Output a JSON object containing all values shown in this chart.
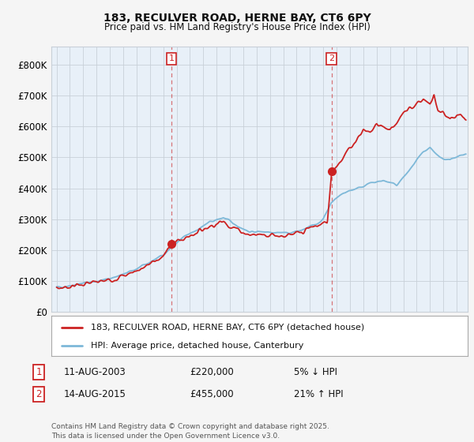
{
  "title_line1": "183, RECULVER ROAD, HERNE BAY, CT6 6PY",
  "title_line2": "Price paid vs. HM Land Registry's House Price Index (HPI)",
  "ytick_labels": [
    "£0",
    "£100K",
    "£200K",
    "£300K",
    "£400K",
    "£500K",
    "£600K",
    "£700K",
    "£800K"
  ],
  "yticks": [
    0,
    100000,
    200000,
    300000,
    400000,
    500000,
    600000,
    700000,
    800000
  ],
  "ylim": [
    0,
    860000
  ],
  "xlim_start": 1994.6,
  "xlim_end": 2025.8,
  "hpi_color": "#7db8d8",
  "price_color": "#cc2222",
  "marker1_x": 2003.62,
  "marker1_y": 220000,
  "marker2_x": 2015.62,
  "marker2_y": 455000,
  "legend_label1": "183, RECULVER ROAD, HERNE BAY, CT6 6PY (detached house)",
  "legend_label2": "HPI: Average price, detached house, Canterbury",
  "note1_date": "11-AUG-2003",
  "note1_price": "£220,000",
  "note1_hpi": "5% ↓ HPI",
  "note2_date": "14-AUG-2015",
  "note2_price": "£455,000",
  "note2_hpi": "21% ↑ HPI",
  "footer": "Contains HM Land Registry data © Crown copyright and database right 2025.\nThis data is licensed under the Open Government Licence v3.0.",
  "bg_color": "#f5f5f5",
  "plot_bg_color": "#e8f0f8",
  "grid_color": "#c8d0d8",
  "hpi_key_t": [
    1995.0,
    1996.0,
    1997.0,
    1998.5,
    2000.0,
    2001.5,
    2003.0,
    2004.5,
    2005.5,
    2006.5,
    2007.5,
    2008.5,
    2009.5,
    2010.5,
    2011.5,
    2012.5,
    2013.5,
    2014.5,
    2015.0,
    2015.6,
    2016.5,
    2017.5,
    2018.5,
    2019.5,
    2020.5,
    2021.5,
    2022.0,
    2022.5,
    2023.0,
    2023.5,
    2024.0,
    2024.5,
    2025.0,
    2025.6
  ],
  "hpi_key_v": [
    78000,
    85000,
    92000,
    102000,
    120000,
    148000,
    185000,
    240000,
    265000,
    290000,
    305000,
    280000,
    258000,
    260000,
    258000,
    255000,
    265000,
    285000,
    300000,
    355000,
    385000,
    400000,
    415000,
    425000,
    410000,
    460000,
    490000,
    515000,
    530000,
    510000,
    495000,
    490000,
    505000,
    510000
  ],
  "pp_key_t": [
    1995.0,
    1996.0,
    1997.0,
    1998.5,
    2000.0,
    2001.5,
    2003.0,
    2003.62,
    2004.5,
    2005.5,
    2006.5,
    2007.5,
    2008.5,
    2009.5,
    2010.5,
    2011.5,
    2012.5,
    2013.5,
    2014.0,
    2014.5,
    2015.3,
    2015.62,
    2016.5,
    2017.0,
    2017.5,
    2018.0,
    2018.5,
    2019.0,
    2019.5,
    2020.0,
    2021.0,
    2021.5,
    2022.0,
    2022.5,
    2023.0,
    2023.3,
    2023.6,
    2024.0,
    2024.5,
    2025.0,
    2025.6
  ],
  "pp_key_v": [
    75000,
    82000,
    89000,
    98000,
    115000,
    143000,
    178000,
    220000,
    235000,
    258000,
    278000,
    292000,
    268000,
    248000,
    252000,
    248000,
    245000,
    258000,
    272000,
    278000,
    290000,
    455000,
    500000,
    530000,
    560000,
    590000,
    580000,
    610000,
    600000,
    590000,
    640000,
    660000,
    675000,
    690000,
    670000,
    700000,
    650000,
    640000,
    620000,
    635000,
    625000
  ]
}
